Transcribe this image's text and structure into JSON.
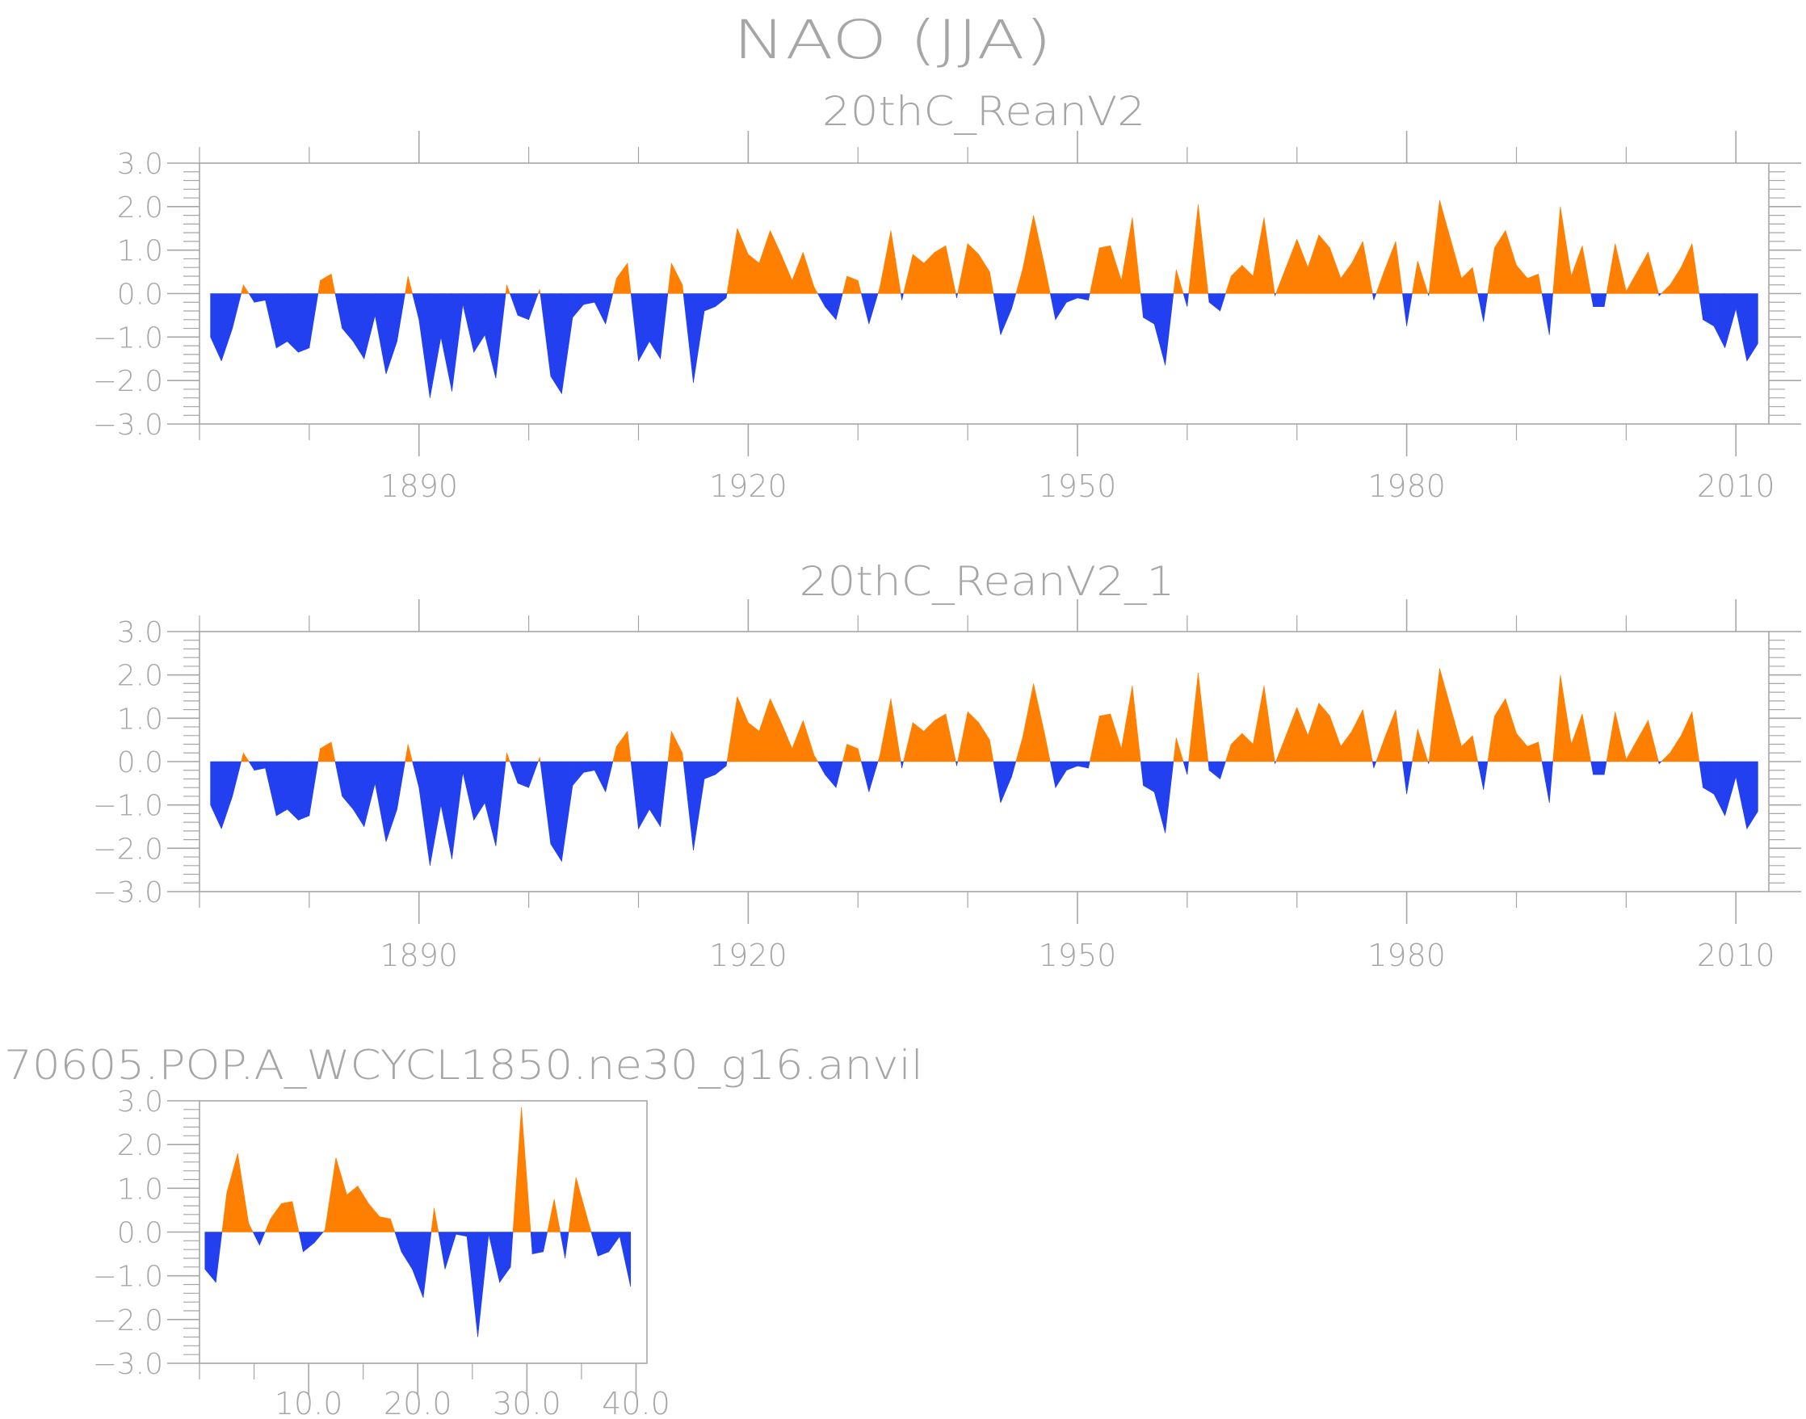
{
  "figure_title": "NAO (JJA)",
  "colors": {
    "positive": "#ff8000",
    "negative": "#2340f0",
    "axis": "#a6a6a6",
    "text": "#a6a6a6"
  },
  "chart_data": [
    {
      "type": "area",
      "title": "20thC_ReanV2",
      "xlabel": "",
      "ylabel": "",
      "xlim": [
        1870,
        2013
      ],
      "ylim": [
        -3.0,
        3.0
      ],
      "xticks": [
        1890,
        1920,
        1950,
        1980,
        2010
      ],
      "yticks": [
        "3.0",
        "2.0",
        "1.0",
        "0.0",
        "-1.0",
        "-2.0",
        "-3.0"
      ],
      "x_start": 1871,
      "values": [
        -1.0,
        -1.55,
        -0.8,
        0.2,
        -0.2,
        -0.15,
        -1.25,
        -1.1,
        -1.35,
        -1.25,
        0.3,
        0.45,
        -0.8,
        -1.1,
        -1.5,
        -0.5,
        -1.85,
        -1.1,
        0.4,
        -0.6,
        -2.4,
        -1.0,
        -2.25,
        -0.25,
        -1.35,
        -0.95,
        -1.95,
        0.2,
        -0.5,
        -0.6,
        0.1,
        -1.9,
        -2.3,
        -0.55,
        -0.25,
        -0.2,
        -0.7,
        0.35,
        0.7,
        -1.55,
        -1.1,
        -1.5,
        0.7,
        0.2,
        -2.05,
        -0.4,
        -0.3,
        -0.1,
        1.5,
        0.9,
        0.7,
        1.45,
        0.9,
        0.3,
        0.95,
        0.15,
        -0.3,
        -0.6,
        0.4,
        0.3,
        -0.7,
        0.15,
        1.45,
        -0.15,
        0.9,
        0.7,
        0.95,
        1.1,
        -0.1,
        1.15,
        0.9,
        0.5,
        -0.95,
        -0.35,
        0.55,
        1.8,
        0.65,
        -0.6,
        -0.2,
        -0.1,
        -0.15,
        1.05,
        1.1,
        0.3,
        1.75,
        -0.55,
        -0.7,
        -1.65,
        0.55,
        -0.3,
        2.05,
        -0.2,
        -0.4,
        0.4,
        0.65,
        0.4,
        1.75,
        -0.05,
        0.6,
        1.25,
        0.6,
        1.35,
        1.05,
        0.35,
        0.7,
        1.2,
        -0.15,
        0.55,
        1.2,
        -0.75,
        0.75,
        -0.05,
        2.15,
        1.25,
        0.35,
        0.6,
        -0.65,
        1.05,
        1.45,
        0.65,
        0.35,
        0.45,
        -0.95,
        2.0,
        0.4,
        1.1,
        -0.3,
        -0.3,
        1.15,
        0.05,
        0.5,
        0.95,
        -0.05,
        0.2,
        0.6,
        1.15,
        -0.6,
        -0.75,
        -1.25,
        -0.35,
        -1.55,
        -1.15
      ]
    },
    {
      "type": "area",
      "title": "20thC_ReanV2_1",
      "xlabel": "",
      "ylabel": "",
      "xlim": [
        1870,
        2013
      ],
      "ylim": [
        -3.0,
        3.0
      ],
      "xticks": [
        1890,
        1920,
        1950,
        1980,
        2010
      ],
      "yticks": [
        "3.0",
        "2.0",
        "1.0",
        "0.0",
        "-1.0",
        "-2.0",
        "-3.0"
      ],
      "x_start": 1871,
      "values": [
        -1.0,
        -1.55,
        -0.8,
        0.2,
        -0.2,
        -0.15,
        -1.25,
        -1.1,
        -1.35,
        -1.25,
        0.3,
        0.45,
        -0.8,
        -1.1,
        -1.5,
        -0.5,
        -1.85,
        -1.1,
        0.4,
        -0.6,
        -2.4,
        -1.0,
        -2.25,
        -0.25,
        -1.35,
        -0.95,
        -1.95,
        0.2,
        -0.5,
        -0.6,
        0.1,
        -1.9,
        -2.3,
        -0.55,
        -0.25,
        -0.2,
        -0.7,
        0.35,
        0.7,
        -1.55,
        -1.1,
        -1.5,
        0.7,
        0.2,
        -2.05,
        -0.4,
        -0.3,
        -0.1,
        1.5,
        0.9,
        0.7,
        1.45,
        0.9,
        0.3,
        0.95,
        0.15,
        -0.3,
        -0.6,
        0.4,
        0.3,
        -0.7,
        0.15,
        1.45,
        -0.15,
        0.9,
        0.7,
        0.95,
        1.1,
        -0.1,
        1.15,
        0.9,
        0.5,
        -0.95,
        -0.35,
        0.55,
        1.8,
        0.65,
        -0.6,
        -0.2,
        -0.1,
        -0.15,
        1.05,
        1.1,
        0.3,
        1.75,
        -0.55,
        -0.7,
        -1.65,
        0.55,
        -0.3,
        2.05,
        -0.2,
        -0.4,
        0.4,
        0.65,
        0.4,
        1.75,
        -0.05,
        0.6,
        1.25,
        0.6,
        1.35,
        1.05,
        0.35,
        0.7,
        1.2,
        -0.15,
        0.55,
        1.2,
        -0.75,
        0.75,
        -0.05,
        2.15,
        1.25,
        0.35,
        0.6,
        -0.65,
        1.05,
        1.45,
        0.65,
        0.35,
        0.45,
        -0.95,
        2.0,
        0.4,
        1.1,
        -0.3,
        -0.3,
        1.15,
        0.05,
        0.5,
        0.95,
        -0.05,
        0.2,
        0.6,
        1.15,
        -0.6,
        -0.75,
        -1.25,
        -0.35,
        -1.55,
        -1.15
      ]
    },
    {
      "type": "area",
      "title": "70605.POP.A_WCYCL1850.ne30_g16.anvil",
      "xlabel": "",
      "ylabel": "",
      "xlim": [
        0.0,
        41.0
      ],
      "ylim": [
        -3.0,
        3.0
      ],
      "xticks": [
        10.0,
        20.0,
        30.0,
        40.0
      ],
      "xtick_labels": [
        "10.0",
        "20.0",
        "30.0",
        "40.0"
      ],
      "yticks": [
        "3.0",
        "2.0",
        "1.0",
        "0.0",
        "-1.0",
        "-2.0",
        "-3.0"
      ],
      "x_start": 0.5,
      "values": [
        -0.85,
        -1.15,
        0.9,
        1.8,
        0.2,
        -0.3,
        0.3,
        0.65,
        0.7,
        -0.45,
        -0.25,
        0.05,
        1.7,
        0.85,
        1.05,
        0.65,
        0.35,
        0.3,
        -0.45,
        -0.85,
        -1.5,
        0.55,
        -0.85,
        -0.05,
        -0.1,
        -2.4,
        -0.05,
        -1.15,
        -0.8,
        2.85,
        -0.5,
        -0.45,
        0.75,
        -0.6,
        1.25,
        0.35,
        -0.55,
        -0.45,
        -0.1,
        -1.25
      ]
    }
  ]
}
